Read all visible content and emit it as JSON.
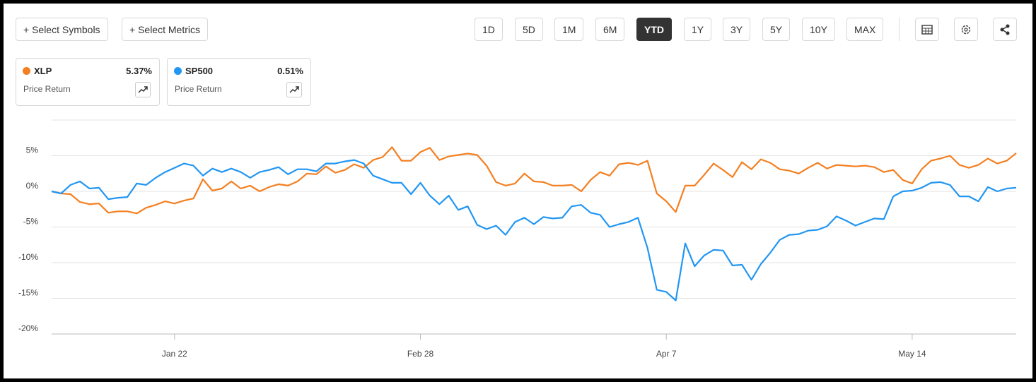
{
  "toolbar": {
    "symbols_button": "+ Select Symbols",
    "metrics_button": "+ Select Metrics",
    "ranges": [
      "1D",
      "5D",
      "1M",
      "6M",
      "YTD",
      "1Y",
      "3Y",
      "5Y",
      "10Y",
      "MAX"
    ],
    "selected": "YTD"
  },
  "legend_cards": [
    {
      "change": "5.37%",
      "metric": "Price Return"
    },
    {
      "change": "0.51%",
      "metric": "Price Return"
    }
  ],
  "chart_data": {
    "type": "line",
    "categories": [
      null,
      null,
      null,
      null,
      null,
      null,
      null,
      null,
      null,
      null,
      null,
      null,
      null,
      "Jan 22",
      null,
      null,
      null,
      null,
      null,
      null,
      null,
      null,
      null,
      null,
      null,
      null,
      null,
      null,
      null,
      null,
      null,
      null,
      null,
      null,
      null,
      null,
      null,
      null,
      null,
      "Feb 28",
      null,
      null,
      null,
      null,
      null,
      null,
      null,
      null,
      null,
      null,
      null,
      null,
      null,
      null,
      null,
      null,
      null,
      null,
      null,
      null,
      null,
      null,
      null,
      null,
      null,
      "Apr 7",
      null,
      null,
      null,
      null,
      null,
      null,
      null,
      null,
      null,
      null,
      null,
      null,
      null,
      null,
      null,
      null,
      null,
      null,
      null,
      null,
      null,
      null,
      null,
      null,
      null,
      "May 14",
      null,
      null,
      null,
      null,
      null,
      null,
      null,
      null,
      null,
      null,
      null
    ],
    "series": [
      {
        "name": "XLP",
        "color": "#f47f20",
        "values": [
          0,
          -0.3,
          -0.4,
          -1.5,
          -1.8,
          -1.7,
          -3.0,
          -2.8,
          -2.8,
          -3.1,
          -2.3,
          -1.9,
          -1.4,
          -1.7,
          -1.3,
          -1.0,
          1.7,
          0.1,
          0.4,
          1.4,
          0.4,
          0.8,
          0,
          0.6,
          1.0,
          0.8,
          1.4,
          2.5,
          2.4,
          3.5,
          2.6,
          3.0,
          3.8,
          3.3,
          4.4,
          4.8,
          6.2,
          4.3,
          4.3,
          5.5,
          6.1,
          4.4,
          4.9,
          5.1,
          5.3,
          5.1,
          3.6,
          1.3,
          0.8,
          1.1,
          2.5,
          1.4,
          1.3,
          0.8,
          0.8,
          0.9,
          0,
          1.6,
          2.7,
          2.2,
          3.8,
          4.0,
          3.7,
          4.3,
          -0.3,
          -1.4,
          -2.9,
          0.8,
          0.8,
          2.3,
          3.9,
          3.0,
          2.0,
          4.1,
          3.1,
          4.5,
          4.0,
          3.1,
          2.9,
          2.5,
          3.3,
          4.0,
          3.2,
          3.7,
          3.6,
          3.5,
          3.6,
          3.4,
          2.7,
          3.0,
          1.6,
          1.1,
          3.1,
          4.3,
          4.6,
          5.0,
          3.7,
          3.3,
          3.7,
          4.6,
          3.9,
          4.3,
          5.37
        ]
      },
      {
        "name": "SP500",
        "color": "#2196f3",
        "values": [
          0,
          -0.3,
          0.9,
          1.4,
          0.4,
          0.5,
          -1.1,
          -0.9,
          -0.8,
          1.1,
          0.9,
          1.9,
          2.7,
          3.3,
          3.9,
          3.6,
          2.2,
          3.2,
          2.7,
          3.2,
          2.7,
          1.9,
          2.7,
          3.0,
          3.4,
          2.4,
          3.1,
          3.1,
          2.8,
          3.9,
          3.9,
          4.2,
          4.4,
          3.9,
          2.2,
          1.7,
          1.2,
          1.2,
          -0.4,
          1.2,
          -0.6,
          -1.8,
          -0.6,
          -2.6,
          -2.1,
          -4.7,
          -5.3,
          -4.8,
          -6.1,
          -4.3,
          -3.7,
          -4.6,
          -3.6,
          -3.8,
          -3.7,
          -2.1,
          -1.9,
          -3.0,
          -3.3,
          -5.0,
          -4.6,
          -4.3,
          -3.7,
          -7.9,
          -13.8,
          -14.1,
          -15.3,
          -7.3,
          -10.5,
          -9.0,
          -8.2,
          -8.3,
          -10.4,
          -10.3,
          -12.4,
          -10.2,
          -8.6,
          -6.8,
          -6.1,
          -6.0,
          -5.5,
          -5.4,
          -4.9,
          -3.5,
          -4.1,
          -4.8,
          -4.3,
          -3.8,
          -3.9,
          -0.7,
          0,
          0.1,
          0.5,
          1.2,
          1.3,
          0.9,
          -0.7,
          -0.7,
          -1.4,
          0.6,
          0,
          0.4,
          0.51
        ]
      }
    ],
    "ylim": [
      -20,
      10
    ],
    "yticks": [
      {
        "value": 5,
        "label": "5%"
      },
      {
        "value": 0,
        "label": "0%"
      },
      {
        "value": -5,
        "label": "-5%"
      },
      {
        "value": -10,
        "label": "-10%"
      },
      {
        "value": -15,
        "label": "-15%"
      },
      {
        "value": -20,
        "label": "-20%"
      }
    ],
    "grid": true
  }
}
